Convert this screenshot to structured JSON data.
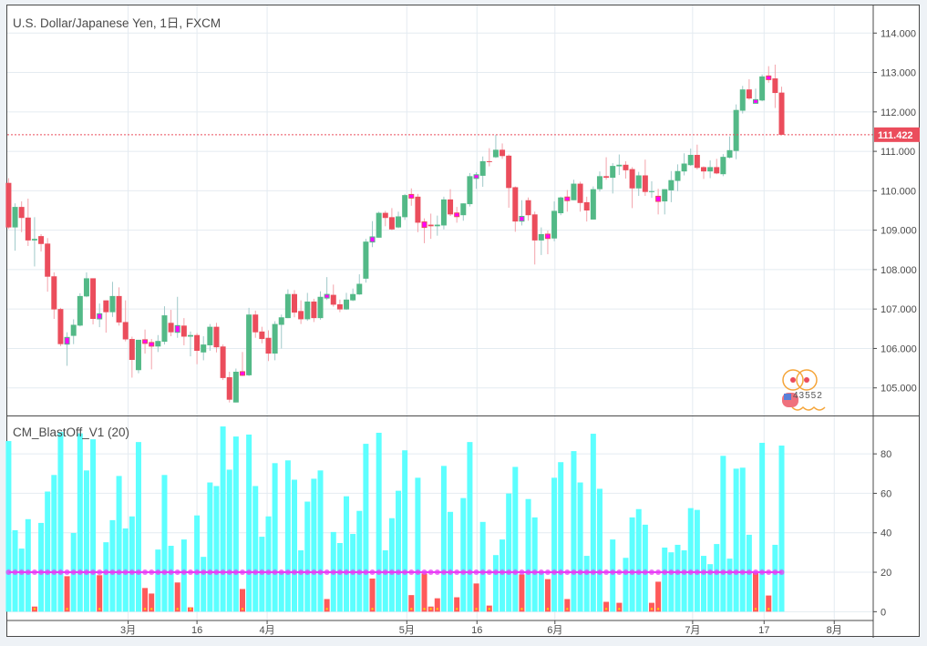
{
  "header": {
    "title": "U.S. Dollar/Japanese Yen, 1日, FXCM"
  },
  "indicator": {
    "title": "CM_BlastOff_V1 (20)"
  },
  "watermark": {
    "text": "43552"
  },
  "colors": {
    "up": "#53b987",
    "down": "#eb4d5c",
    "up_wick": "#9fc9c9",
    "down_wick": "#f3a3ab",
    "highlight": "#ff00ff",
    "ind_bar": "#5cffff",
    "ind_red": "#ff5a5a",
    "threshold": "#e83df5",
    "grid": "#e4ebf1",
    "last_price": "#eb4d5c"
  },
  "chart_data": [
    {
      "type": "candlestick",
      "title": "U.S. Dollar/Japanese Yen, 1日, FXCM",
      "ylim": [
        104.3,
        114.7
      ],
      "xlim_bars": [
        -0.2,
        133.1
      ],
      "yticks": [
        "105.000",
        "106.000",
        "107.000",
        "108.000",
        "109.000",
        "110.000",
        "111.000",
        "112.000",
        "113.000",
        "114.000"
      ],
      "ytick_values": [
        105,
        106,
        107,
        108,
        109,
        110,
        111,
        112,
        113,
        114
      ],
      "xticks": [
        {
          "label": "3月",
          "bar": 18.4
        },
        {
          "label": "16",
          "bar": 29.0
        },
        {
          "label": "4月",
          "bar": 39.8
        },
        {
          "label": "5月",
          "bar": 61.3
        },
        {
          "label": "16",
          "bar": 72.1
        },
        {
          "label": "6月",
          "bar": 84.1
        },
        {
          "label": "7月",
          "bar": 105.3
        },
        {
          "label": "17",
          "bar": 116.3
        },
        {
          "label": "8月",
          "bar": 127.1
        }
      ],
      "last_price": 111.422,
      "last_price_label": "111.422",
      "ohlc_fields": [
        "open",
        "high",
        "low",
        "close"
      ],
      "ohlc": [
        [
          110.2,
          110.32,
          109.03,
          109.07
        ],
        [
          109.07,
          109.68,
          108.48,
          109.59
        ],
        [
          109.59,
          109.73,
          108.95,
          109.31
        ],
        [
          109.32,
          109.8,
          108.6,
          108.74
        ],
        [
          108.74,
          109.33,
          108.08,
          108.78
        ],
        [
          108.85,
          108.9,
          108.46,
          108.65
        ],
        [
          108.66,
          108.8,
          107.44,
          107.82
        ],
        [
          107.83,
          107.93,
          106.75,
          106.99
        ],
        [
          107.0,
          107.03,
          106.06,
          106.11
        ],
        [
          106.11,
          106.41,
          105.56,
          106.28
        ],
        [
          106.32,
          106.74,
          106.11,
          106.6
        ],
        [
          106.58,
          107.4,
          106.56,
          107.33
        ],
        [
          107.32,
          107.93,
          107.3,
          107.78
        ],
        [
          107.78,
          107.78,
          106.61,
          106.75
        ],
        [
          106.75,
          107.14,
          106.54,
          106.88
        ],
        [
          107.22,
          107.22,
          106.4,
          106.92
        ],
        [
          106.92,
          107.69,
          106.8,
          107.33
        ],
        [
          107.33,
          107.55,
          106.58,
          106.66
        ],
        [
          106.67,
          107.22,
          106.18,
          106.23
        ],
        [
          106.24,
          106.3,
          105.26,
          105.71
        ],
        [
          105.45,
          106.22,
          105.37,
          106.22
        ],
        [
          106.22,
          106.48,
          105.87,
          106.13
        ],
        [
          106.15,
          106.24,
          105.47,
          106.06
        ],
        [
          106.05,
          106.34,
          105.91,
          106.19
        ],
        [
          106.17,
          107.07,
          106.1,
          106.84
        ],
        [
          106.65,
          106.98,
          106.31,
          106.41
        ],
        [
          106.41,
          107.31,
          106.27,
          106.58
        ],
        [
          106.58,
          106.77,
          106.08,
          106.3
        ],
        [
          106.3,
          106.43,
          105.8,
          106.34
        ],
        [
          106.34,
          106.39,
          105.6,
          105.94
        ],
        [
          105.9,
          106.31,
          105.7,
          106.1
        ],
        [
          106.08,
          106.62,
          105.94,
          106.55
        ],
        [
          106.55,
          106.65,
          105.9,
          106.03
        ],
        [
          106.05,
          106.1,
          105.2,
          105.25
        ],
        [
          105.27,
          105.41,
          104.63,
          104.7
        ],
        [
          104.63,
          105.49,
          104.63,
          105.41
        ],
        [
          105.41,
          105.91,
          105.3,
          105.32
        ],
        [
          105.32,
          107.03,
          105.3,
          106.86
        ],
        [
          106.86,
          106.96,
          106.27,
          106.41
        ],
        [
          106.43,
          106.55,
          106.13,
          106.24
        ],
        [
          106.27,
          106.46,
          105.68,
          105.87
        ],
        [
          105.87,
          106.69,
          105.7,
          106.62
        ],
        [
          106.6,
          106.86,
          106.0,
          106.79
        ],
        [
          106.77,
          107.5,
          106.77,
          107.38
        ],
        [
          107.38,
          107.48,
          106.79,
          106.91
        ],
        [
          106.95,
          107.22,
          106.62,
          106.74
        ],
        [
          106.74,
          107.41,
          106.7,
          107.19
        ],
        [
          107.19,
          107.26,
          106.67,
          106.77
        ],
        [
          106.77,
          107.45,
          106.73,
          107.31
        ],
        [
          107.3,
          107.81,
          107.23,
          107.35
        ],
        [
          107.36,
          107.62,
          107.06,
          107.11
        ],
        [
          107.12,
          107.24,
          106.92,
          106.99
        ],
        [
          106.99,
          107.41,
          106.98,
          107.24
        ],
        [
          107.22,
          107.52,
          107.2,
          107.38
        ],
        [
          107.37,
          107.88,
          107.36,
          107.64
        ],
        [
          107.77,
          108.78,
          107.67,
          108.71
        ],
        [
          108.7,
          109.23,
          108.57,
          108.83
        ],
        [
          108.81,
          109.47,
          108.81,
          109.44
        ],
        [
          109.44,
          109.49,
          109.1,
          109.31
        ],
        [
          109.33,
          109.56,
          109.0,
          109.02
        ],
        [
          109.07,
          109.47,
          109.05,
          109.35
        ],
        [
          109.33,
          109.92,
          109.26,
          109.89
        ],
        [
          109.89,
          110.06,
          109.62,
          109.83
        ],
        [
          109.85,
          109.92,
          108.95,
          109.19
        ],
        [
          109.21,
          109.3,
          108.67,
          109.07
        ],
        [
          109.14,
          109.42,
          108.78,
          109.1
        ],
        [
          109.1,
          109.37,
          108.86,
          109.14
        ],
        [
          109.12,
          109.85,
          109.02,
          109.78
        ],
        [
          109.78,
          110.04,
          109.36,
          109.4
        ],
        [
          109.42,
          109.59,
          109.19,
          109.36
        ],
        [
          109.38,
          109.68,
          109.24,
          109.68
        ],
        [
          109.66,
          110.45,
          109.6,
          110.37
        ],
        [
          110.33,
          110.47,
          110.05,
          110.39
        ],
        [
          110.38,
          110.87,
          110.1,
          110.75
        ],
        [
          110.75,
          111.08,
          110.62,
          110.73
        ],
        [
          110.85,
          111.42,
          110.83,
          111.04
        ],
        [
          111.04,
          111.2,
          110.81,
          110.88
        ],
        [
          110.89,
          110.92,
          109.57,
          110.07
        ],
        [
          110.09,
          110.11,
          108.96,
          109.22
        ],
        [
          109.23,
          109.76,
          109.12,
          109.35
        ],
        [
          109.76,
          109.83,
          109.24,
          109.38
        ],
        [
          109.4,
          109.47,
          108.13,
          108.74
        ],
        [
          108.74,
          109.07,
          108.37,
          108.9
        ],
        [
          108.9,
          108.99,
          108.39,
          108.79
        ],
        [
          108.79,
          109.73,
          108.72,
          109.49
        ],
        [
          109.43,
          109.85,
          109.38,
          109.83
        ],
        [
          109.83,
          110.02,
          109.47,
          109.76
        ],
        [
          109.76,
          110.28,
          109.76,
          110.18
        ],
        [
          110.18,
          110.23,
          109.47,
          109.69
        ],
        [
          109.71,
          109.85,
          109.22,
          109.5
        ],
        [
          109.27,
          110.11,
          109.27,
          110.04
        ],
        [
          110.04,
          110.49,
          109.98,
          110.37
        ],
        [
          110.37,
          110.85,
          110.28,
          110.33
        ],
        [
          110.33,
          110.7,
          109.93,
          110.63
        ],
        [
          110.62,
          110.92,
          110.4,
          110.66
        ],
        [
          110.66,
          110.75,
          110.31,
          110.52
        ],
        [
          110.55,
          110.6,
          109.56,
          110.06
        ],
        [
          110.06,
          110.48,
          109.87,
          110.39
        ],
        [
          110.39,
          110.79,
          109.87,
          109.97
        ],
        [
          109.97,
          110.24,
          109.82,
          109.99
        ],
        [
          109.86,
          110.05,
          109.4,
          109.73
        ],
        [
          109.73,
          110.04,
          109.4,
          110.04
        ],
        [
          110.01,
          110.5,
          109.71,
          110.27
        ],
        [
          110.25,
          110.67,
          109.99,
          110.5
        ],
        [
          110.49,
          110.95,
          110.39,
          110.69
        ],
        [
          110.65,
          111.07,
          110.63,
          110.91
        ],
        [
          110.91,
          111.17,
          110.54,
          110.58
        ],
        [
          110.6,
          110.62,
          110.3,
          110.49
        ],
        [
          110.49,
          110.77,
          110.32,
          110.6
        ],
        [
          110.6,
          110.81,
          110.42,
          110.44
        ],
        [
          110.42,
          110.93,
          110.37,
          110.86
        ],
        [
          110.84,
          111.38,
          110.82,
          111.03
        ],
        [
          111.01,
          112.19,
          110.8,
          112.05
        ],
        [
          112.03,
          112.66,
          111.96,
          112.57
        ],
        [
          112.57,
          112.83,
          112.31,
          112.34
        ],
        [
          112.22,
          112.59,
          112.22,
          112.31
        ],
        [
          112.29,
          112.95,
          112.27,
          112.9
        ],
        [
          112.9,
          113.16,
          112.74,
          112.83
        ],
        [
          112.85,
          113.2,
          112.1,
          112.48
        ],
        [
          112.49,
          112.64,
          111.42,
          111.42
        ]
      ],
      "highlighted_bars": [
        9,
        14,
        21,
        22,
        26,
        36,
        49,
        56,
        62,
        64,
        69,
        72,
        79,
        83,
        86,
        100,
        115,
        117
      ]
    },
    {
      "type": "bar",
      "title": "CM_BlastOff_V1 (20)",
      "ylim": [
        -4,
        99
      ],
      "yticks": [
        "0",
        "20",
        "40",
        "60",
        "80"
      ],
      "ytick_values": [
        0,
        20,
        40,
        60,
        80
      ],
      "threshold": 20,
      "values": [
        86.5,
        41.3,
        32,
        46.9,
        2.6,
        45,
        60.9,
        69.3,
        91.1,
        18,
        39.9,
        90.4,
        71.6,
        87.4,
        18.5,
        35.2,
        46.4,
        68.8,
        42.2,
        48.3,
        86,
        12,
        9.2,
        31.5,
        69.3,
        33.4,
        14.8,
        36.6,
        2.2,
        48.8,
        27.8,
        65.5,
        63.7,
        93.9,
        72,
        88.8,
        11.5,
        89.8,
        63.7,
        38,
        48.3,
        75.3,
        20.5,
        76.7,
        66.9,
        31.1,
        55.8,
        67.4,
        71.6,
        6.4,
        40.4,
        34.8,
        58.5,
        39.4,
        51.1,
        85.1,
        16.8,
        90.7,
        31.1,
        47.4,
        61.3,
        81.8,
        8.4,
        67.9,
        19.4,
        2.6,
        6.8,
        73.9,
        50.6,
        7.3,
        57.6,
        86,
        14.3,
        45.5,
        3.1,
        28.7,
        36.6,
        59.9,
        73.4,
        18.9,
        57.1,
        47.8,
        20.5,
        16.5,
        67.9,
        75.8,
        6.4,
        81.4,
        65.5,
        28.3,
        90.2,
        62.3,
        5,
        36.6,
        4.5,
        27.3,
        47.8,
        52,
        44.1,
        4.5,
        15.2,
        32.5,
        30.1,
        33.9,
        31.1,
        52.5,
        51.6,
        28.3,
        24.1,
        34.3,
        79,
        26.9,
        72.5,
        73,
        39,
        19.7,
        85.6,
        8.2,
        33.9,
        84.2
      ]
    }
  ]
}
